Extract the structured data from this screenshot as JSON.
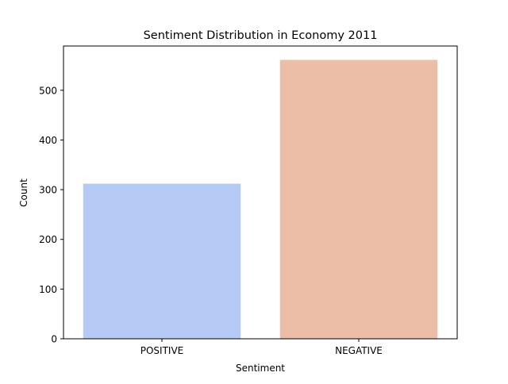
{
  "chart_data": {
    "type": "bar",
    "title": "Sentiment Distribution in Economy 2011",
    "xlabel": "Sentiment",
    "ylabel": "Count",
    "categories": [
      "POSITIVE",
      "NEGATIVE"
    ],
    "values": [
      312,
      561
    ],
    "bar_colors": [
      "#b5cbf5",
      "#ecbda7"
    ],
    "ylim": [
      0,
      589
    ],
    "yticks": [
      0,
      100,
      200,
      300,
      400,
      500
    ],
    "ytick_labels": [
      "0",
      "100",
      "200",
      "300",
      "400",
      "500"
    ],
    "grid": false,
    "legend": "none"
  }
}
